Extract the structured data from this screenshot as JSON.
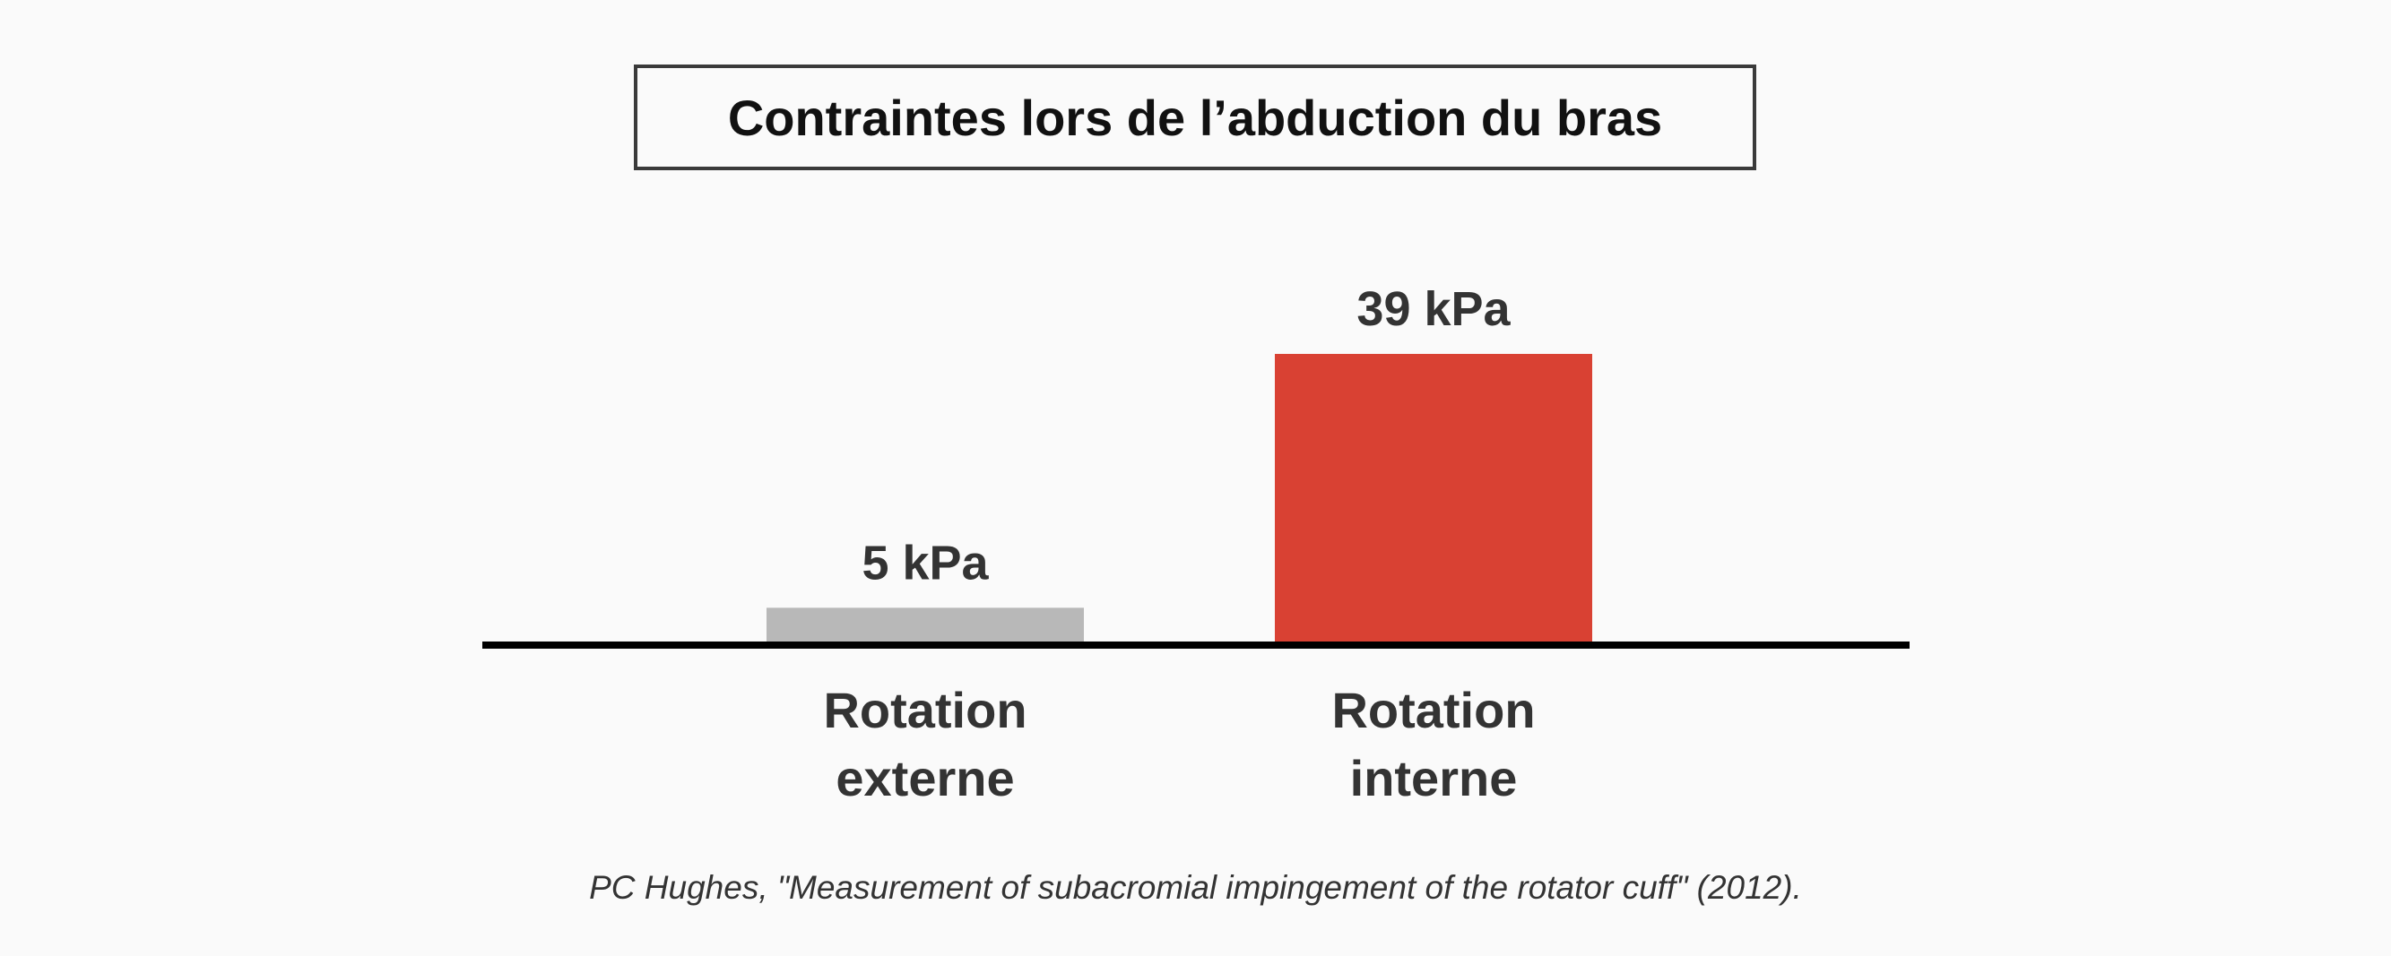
{
  "chart_data": {
    "type": "bar",
    "title": "Contraintes lors de l’abduction du bras",
    "categories": [
      [
        "Rotation",
        "externe"
      ],
      [
        "Rotation",
        "interne"
      ]
    ],
    "values": [
      5,
      39
    ],
    "value_labels": [
      "5 kPa",
      "39 kPa"
    ],
    "unit": "kPa",
    "colors": [
      "#b8b8b8",
      "#d94133"
    ],
    "ylim": [
      0,
      39
    ],
    "grid": false,
    "legend": "none"
  },
  "source": "PC Hughes, \"Measurement of subacromial impingement of the rotator cuff\" (2012)."
}
